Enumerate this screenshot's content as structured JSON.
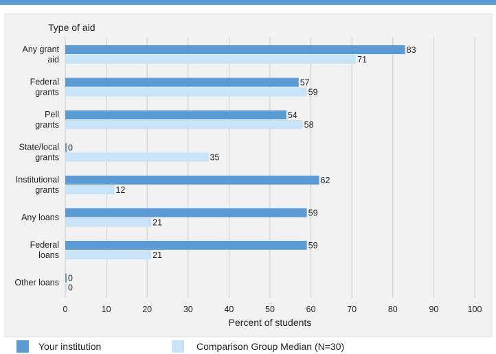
{
  "chart_data": {
    "type": "bar",
    "orientation": "horizontal",
    "title": "Type of aid",
    "xlabel": "Percent of students",
    "ylabel": "",
    "xlim": [
      0,
      100
    ],
    "xticks": [
      0,
      10,
      20,
      30,
      40,
      50,
      60,
      70,
      80,
      90,
      100
    ],
    "grid": true,
    "legend_position": "bottom",
    "categories": [
      [
        "Any grant",
        "aid"
      ],
      [
        "Federal",
        "grants"
      ],
      [
        "Pell",
        "grants"
      ],
      [
        "State/local",
        "grants"
      ],
      [
        "Institutional",
        "grants"
      ],
      [
        "Any loans"
      ],
      [
        "Federal",
        "loans"
      ],
      [
        "Other loans"
      ]
    ],
    "series": [
      {
        "name": "Your institution",
        "color": "#5b9bd5",
        "values": [
          83,
          57,
          54,
          0,
          62,
          59,
          59,
          0
        ]
      },
      {
        "name": "Comparison Group Median (N=30)",
        "color": "#c6e3f7",
        "values": [
          71,
          59,
          58,
          35,
          12,
          21,
          21,
          0
        ]
      }
    ]
  },
  "colors": {
    "top_bar": "#5b9bd5",
    "plot_background": "#f2f2f2",
    "grid": "#cccccc"
  }
}
